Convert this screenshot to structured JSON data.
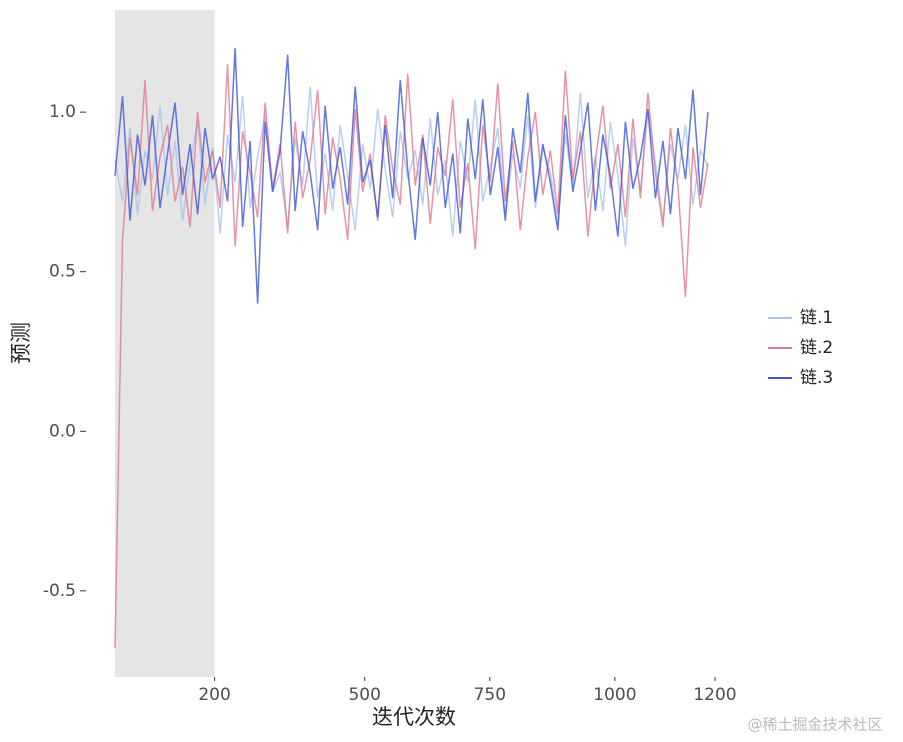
{
  "chart_data": {
    "type": "line",
    "x_label": "迭代次数",
    "y_label": "预测",
    "x": [
      1,
      16,
      31,
      46,
      61,
      76,
      91,
      106,
      121,
      136,
      151,
      166,
      181,
      196,
      211,
      226,
      241,
      256,
      271,
      286,
      301,
      316,
      331,
      346,
      361,
      376,
      391,
      406,
      421,
      436,
      451,
      466,
      481,
      496,
      511,
      526,
      541,
      556,
      571,
      586,
      601,
      616,
      631,
      646,
      661,
      676,
      691,
      706,
      721,
      736,
      751,
      766,
      781,
      796,
      811,
      826,
      841,
      856,
      871,
      886,
      901,
      916,
      931,
      946,
      961,
      976,
      991,
      1006,
      1021,
      1036,
      1051,
      1066,
      1081,
      1096,
      1111,
      1126,
      1141,
      1156,
      1171,
      1186
    ],
    "series": [
      {
        "name": "链.1",
        "color": "#a9c2f0",
        "values": [
          0.85,
          0.72,
          0.95,
          0.68,
          0.88,
          0.79,
          1.02,
          0.74,
          0.91,
          0.66,
          0.84,
          0.97,
          0.71,
          0.89,
          0.62,
          0.93,
          0.78,
          1.05,
          0.7,
          0.86,
          0.99,
          0.75,
          0.81,
          0.64,
          0.92,
          0.77,
          1.08,
          0.73,
          0.87,
          0.69,
          0.96,
          0.8,
          0.63,
          0.9,
          0.76,
          1.01,
          0.82,
          0.67,
          0.94,
          0.79,
          0.88,
          0.71,
          0.98,
          0.74,
          0.85,
          0.61,
          0.91,
          0.78,
          1.04,
          0.72,
          0.83,
          0.95,
          0.68,
          0.87,
          0.76,
          0.99,
          0.7,
          0.89,
          0.81,
          0.65,
          0.93,
          0.77,
          1.06,
          0.73,
          0.86,
          0.69,
          0.97,
          0.8,
          0.58,
          0.92,
          0.75,
          1.0,
          0.84,
          0.66,
          0.9,
          0.79,
          0.96,
          0.71,
          0.88,
          0.83
        ]
      },
      {
        "name": "链.2",
        "color": "#e07890",
        "values": [
          -0.68,
          0.6,
          0.92,
          0.74,
          1.1,
          0.69,
          0.86,
          0.96,
          0.72,
          0.83,
          0.64,
          1.0,
          0.78,
          0.88,
          0.7,
          1.15,
          0.58,
          0.94,
          0.81,
          0.67,
          1.03,
          0.76,
          0.9,
          0.62,
          0.97,
          0.73,
          0.85,
          1.07,
          0.68,
          0.92,
          0.79,
          0.6,
          1.01,
          0.75,
          0.87,
          0.66,
          0.99,
          0.82,
          0.71,
          1.12,
          0.77,
          0.93,
          0.65,
          0.89,
          0.8,
          1.04,
          0.7,
          0.84,
          0.57,
          0.96,
          0.78,
          1.09,
          0.72,
          0.91,
          0.63,
          0.86,
          1.0,
          0.74,
          0.88,
          0.68,
          1.13,
          0.79,
          0.94,
          0.61,
          0.85,
          1.02,
          0.76,
          0.9,
          0.67,
          0.98,
          0.73,
          1.06,
          0.81,
          0.64,
          0.95,
          0.77,
          0.42,
          0.89,
          0.7,
          0.84
        ]
      },
      {
        "name": "链.3",
        "color": "#3d55d6",
        "values": [
          0.8,
          1.05,
          0.66,
          0.93,
          0.77,
          0.99,
          0.7,
          0.87,
          1.03,
          0.74,
          0.9,
          0.68,
          0.95,
          0.79,
          0.86,
          0.72,
          1.2,
          0.64,
          0.91,
          0.4,
          0.97,
          0.75,
          0.88,
          1.18,
          0.69,
          0.94,
          0.81,
          0.63,
          1.02,
          0.76,
          0.89,
          0.71,
          1.08,
          0.78,
          0.85,
          0.67,
          0.96,
          0.73,
          1.1,
          0.82,
          0.6,
          0.92,
          0.77,
          1.0,
          0.7,
          0.87,
          0.62,
          0.98,
          0.79,
          1.04,
          0.74,
          0.89,
          0.66,
          0.95,
          0.81,
          1.06,
          0.72,
          0.9,
          0.78,
          0.63,
          0.99,
          0.75,
          0.88,
          1.03,
          0.69,
          0.93,
          0.8,
          0.61,
          0.97,
          0.76,
          0.86,
          1.01,
          0.73,
          0.91,
          0.68,
          0.95,
          0.79,
          1.07,
          0.74,
          1.0
        ]
      }
    ],
    "xlim": [
      1,
      1260
    ],
    "ylim": [
      -0.77,
      1.32
    ],
    "xticks": [
      200,
      500,
      750,
      1000,
      1200
    ],
    "yticks": [
      -0.5,
      {
        "value": 0,
        "label": "0.0"
      },
      0.5,
      {
        "value": 1,
        "label": "1.0"
      }
    ],
    "shade_x": [
      1,
      200
    ],
    "shade_color": "#e5e5e5",
    "legend": "right",
    "grid": false
  },
  "watermark": "@稀土掘金技术社区"
}
